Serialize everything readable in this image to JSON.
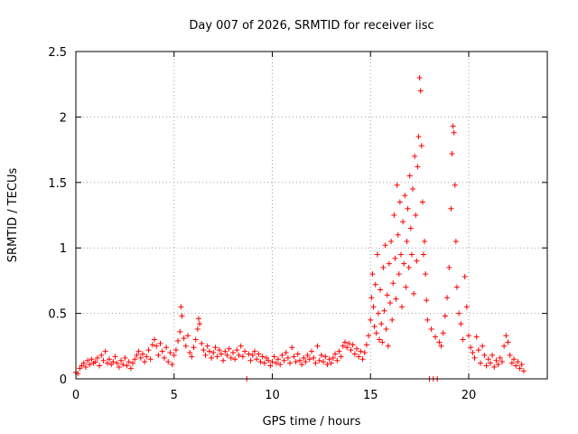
{
  "chart_data": {
    "type": "scatter",
    "title": "Day 007 of 2026, SRMTID for receiver iisc",
    "xlabel": "GPS time / hours",
    "ylabel": "SRMTID / TECUs",
    "xlim": [
      0,
      24
    ],
    "ylim": [
      0,
      2.5
    ],
    "xticks": [
      0,
      5,
      10,
      15,
      20
    ],
    "yticks": [
      0,
      0.5,
      1,
      1.5,
      2,
      2.5
    ],
    "xtick_labels": [
      "0",
      "5",
      "10",
      "15",
      "20"
    ],
    "ytick_labels": [
      "0",
      "0.5",
      "1",
      "1.5",
      "2",
      "2.5"
    ],
    "grid": true,
    "marker": "+",
    "series": [
      {
        "name": "SRMTID",
        "color": "#ff0000",
        "points": [
          [
            0.0,
            0.05
          ],
          [
            0.1,
            0.04
          ],
          [
            0.2,
            0.08
          ],
          [
            0.3,
            0.1
          ],
          [
            0.4,
            0.12
          ],
          [
            0.5,
            0.09
          ],
          [
            0.6,
            0.14
          ],
          [
            0.7,
            0.11
          ],
          [
            0.8,
            0.15
          ],
          [
            0.9,
            0.12
          ],
          [
            1.0,
            0.13
          ],
          [
            1.1,
            0.16
          ],
          [
            1.2,
            0.1
          ],
          [
            1.3,
            0.18
          ],
          [
            1.4,
            0.14
          ],
          [
            1.5,
            0.21
          ],
          [
            1.6,
            0.12
          ],
          [
            1.7,
            0.15
          ],
          [
            1.8,
            0.11
          ],
          [
            1.9,
            0.13
          ],
          [
            2.0,
            0.17
          ],
          [
            2.1,
            0.12
          ],
          [
            2.2,
            0.09
          ],
          [
            2.3,
            0.14
          ],
          [
            2.4,
            0.11
          ],
          [
            2.5,
            0.16
          ],
          [
            2.6,
            0.1
          ],
          [
            2.7,
            0.13
          ],
          [
            2.8,
            0.08
          ],
          [
            2.9,
            0.12
          ],
          [
            3.0,
            0.15
          ],
          [
            3.1,
            0.18
          ],
          [
            3.2,
            0.21
          ],
          [
            3.3,
            0.16
          ],
          [
            3.4,
            0.19
          ],
          [
            3.5,
            0.13
          ],
          [
            3.6,
            0.17
          ],
          [
            3.7,
            0.22
          ],
          [
            3.8,
            0.15
          ],
          [
            3.9,
            0.26
          ],
          [
            4.0,
            0.3
          ],
          [
            4.1,
            0.25
          ],
          [
            4.2,
            0.18
          ],
          [
            4.3,
            0.27
          ],
          [
            4.4,
            0.21
          ],
          [
            4.5,
            0.16
          ],
          [
            4.6,
            0.24
          ],
          [
            4.7,
            0.13
          ],
          [
            4.8,
            0.2
          ],
          [
            4.9,
            0.11
          ],
          [
            5.0,
            0.18
          ],
          [
            5.1,
            0.22
          ],
          [
            5.2,
            0.29
          ],
          [
            5.3,
            0.36
          ],
          [
            5.35,
            0.55
          ],
          [
            5.4,
            0.48
          ],
          [
            5.5,
            0.31
          ],
          [
            5.6,
            0.25
          ],
          [
            5.7,
            0.33
          ],
          [
            5.8,
            0.2
          ],
          [
            5.9,
            0.17
          ],
          [
            6.0,
            0.24
          ],
          [
            6.1,
            0.3
          ],
          [
            6.2,
            0.38
          ],
          [
            6.25,
            0.46
          ],
          [
            6.3,
            0.42
          ],
          [
            6.4,
            0.27
          ],
          [
            6.5,
            0.22
          ],
          [
            6.6,
            0.18
          ],
          [
            6.7,
            0.25
          ],
          [
            6.8,
            0.21
          ],
          [
            6.9,
            0.16
          ],
          [
            7.0,
            0.2
          ],
          [
            7.1,
            0.24
          ],
          [
            7.2,
            0.17
          ],
          [
            7.3,
            0.22
          ],
          [
            7.4,
            0.19
          ],
          [
            7.5,
            0.14
          ],
          [
            7.6,
            0.21
          ],
          [
            7.7,
            0.18
          ],
          [
            7.8,
            0.23
          ],
          [
            7.9,
            0.16
          ],
          [
            8.0,
            0.2
          ],
          [
            8.1,
            0.15
          ],
          [
            8.2,
            0.22
          ],
          [
            8.3,
            0.18
          ],
          [
            8.4,
            0.25
          ],
          [
            8.5,
            0.17
          ],
          [
            8.6,
            0.21
          ],
          [
            8.7,
            0.0
          ],
          [
            8.8,
            0.19
          ],
          [
            8.9,
            0.14
          ],
          [
            9.0,
            0.18
          ],
          [
            9.1,
            0.21
          ],
          [
            9.2,
            0.15
          ],
          [
            9.3,
            0.19
          ],
          [
            9.4,
            0.13
          ],
          [
            9.5,
            0.17
          ],
          [
            9.6,
            0.12
          ],
          [
            9.7,
            0.16
          ],
          [
            9.8,
            0.14
          ],
          [
            9.9,
            0.1
          ],
          [
            10.0,
            0.13
          ],
          [
            10.1,
            0.17
          ],
          [
            10.2,
            0.12
          ],
          [
            10.3,
            0.15
          ],
          [
            10.4,
            0.11
          ],
          [
            10.5,
            0.18
          ],
          [
            10.6,
            0.14
          ],
          [
            10.7,
            0.2
          ],
          [
            10.8,
            0.16
          ],
          [
            10.9,
            0.12
          ],
          [
            11.0,
            0.24
          ],
          [
            11.1,
            0.17
          ],
          [
            11.2,
            0.13
          ],
          [
            11.3,
            0.19
          ],
          [
            11.4,
            0.14
          ],
          [
            11.5,
            0.11
          ],
          [
            11.6,
            0.16
          ],
          [
            11.7,
            0.13
          ],
          [
            11.8,
            0.18
          ],
          [
            11.9,
            0.15
          ],
          [
            12.0,
            0.21
          ],
          [
            12.1,
            0.16
          ],
          [
            12.2,
            0.12
          ],
          [
            12.3,
            0.25
          ],
          [
            12.4,
            0.14
          ],
          [
            12.5,
            0.18
          ],
          [
            12.6,
            0.13
          ],
          [
            12.7,
            0.17
          ],
          [
            12.8,
            0.11
          ],
          [
            12.9,
            0.15
          ],
          [
            13.0,
            0.12
          ],
          [
            13.1,
            0.16
          ],
          [
            13.2,
            0.19
          ],
          [
            13.3,
            0.14
          ],
          [
            13.4,
            0.21
          ],
          [
            13.5,
            0.17
          ],
          [
            13.6,
            0.25
          ],
          [
            13.7,
            0.28
          ],
          [
            13.8,
            0.24
          ],
          [
            13.9,
            0.27
          ],
          [
            14.0,
            0.22
          ],
          [
            14.1,
            0.26
          ],
          [
            14.2,
            0.19
          ],
          [
            14.3,
            0.23
          ],
          [
            14.4,
            0.17
          ],
          [
            14.5,
            0.21
          ],
          [
            14.6,
            0.15
          ],
          [
            14.7,
            0.2
          ],
          [
            14.8,
            0.26
          ],
          [
            14.9,
            0.33
          ],
          [
            15.0,
            0.45
          ],
          [
            15.05,
            0.62
          ],
          [
            15.1,
            0.8
          ],
          [
            15.15,
            0.55
          ],
          [
            15.2,
            0.4
          ],
          [
            15.25,
            0.72
          ],
          [
            15.3,
            0.35
          ],
          [
            15.35,
            0.95
          ],
          [
            15.4,
            0.5
          ],
          [
            15.45,
            0.3
          ],
          [
            15.5,
            0.68
          ],
          [
            15.55,
            0.42
          ],
          [
            15.6,
            0.28
          ],
          [
            15.65,
            0.85
          ],
          [
            15.7,
            0.52
          ],
          [
            15.75,
            1.02
          ],
          [
            15.8,
            0.38
          ],
          [
            15.85,
            0.64
          ],
          [
            15.9,
            0.25
          ],
          [
            15.95,
            0.88
          ],
          [
            16.0,
            0.58
          ],
          [
            16.05,
            1.05
          ],
          [
            16.1,
            0.45
          ],
          [
            16.15,
            0.73
          ],
          [
            16.2,
            1.25
          ],
          [
            16.25,
            0.92
          ],
          [
            16.3,
            0.61
          ],
          [
            16.35,
            1.48
          ],
          [
            16.4,
            1.1
          ],
          [
            16.45,
            0.8
          ],
          [
            16.5,
            1.35
          ],
          [
            16.55,
            0.95
          ],
          [
            16.6,
            0.55
          ],
          [
            16.65,
            1.2
          ],
          [
            16.7,
            0.88
          ],
          [
            16.75,
            1.4
          ],
          [
            16.8,
            0.7
          ],
          [
            16.85,
            1.05
          ],
          [
            16.9,
            1.3
          ],
          [
            16.95,
            0.85
          ],
          [
            17.0,
            1.55
          ],
          [
            17.05,
            1.15
          ],
          [
            17.1,
            0.95
          ],
          [
            17.15,
            1.45
          ],
          [
            17.2,
            0.65
          ],
          [
            17.25,
            1.7
          ],
          [
            17.3,
            1.25
          ],
          [
            17.35,
            0.9
          ],
          [
            17.4,
            1.62
          ],
          [
            17.45,
            1.85
          ],
          [
            17.5,
            2.3
          ],
          [
            17.55,
            2.2
          ],
          [
            17.6,
            1.78
          ],
          [
            17.65,
            1.35
          ],
          [
            17.7,
            0.95
          ],
          [
            17.75,
            1.05
          ],
          [
            17.8,
            0.8
          ],
          [
            17.85,
            0.6
          ],
          [
            17.9,
            0.45
          ],
          [
            18.0,
            0.0
          ],
          [
            18.1,
            0.38
          ],
          [
            18.2,
            0.0
          ],
          [
            18.3,
            0.32
          ],
          [
            18.4,
            0.0
          ],
          [
            18.5,
            0.28
          ],
          [
            18.6,
            0.25
          ],
          [
            18.7,
            0.35
          ],
          [
            18.8,
            0.48
          ],
          [
            18.9,
            0.62
          ],
          [
            19.0,
            0.85
          ],
          [
            19.1,
            1.3
          ],
          [
            19.15,
            1.72
          ],
          [
            19.2,
            1.93
          ],
          [
            19.25,
            1.88
          ],
          [
            19.3,
            1.48
          ],
          [
            19.35,
            1.05
          ],
          [
            19.4,
            0.7
          ],
          [
            19.5,
            0.5
          ],
          [
            19.6,
            0.42
          ],
          [
            19.7,
            0.3
          ],
          [
            19.8,
            0.78
          ],
          [
            19.9,
            0.55
          ],
          [
            20.0,
            0.33
          ],
          [
            20.1,
            0.24
          ],
          [
            20.2,
            0.2
          ],
          [
            20.3,
            0.16
          ],
          [
            20.4,
            0.32
          ],
          [
            20.5,
            0.22
          ],
          [
            20.6,
            0.12
          ],
          [
            20.7,
            0.25
          ],
          [
            20.8,
            0.18
          ],
          [
            20.9,
            0.1
          ],
          [
            21.0,
            0.15
          ],
          [
            21.1,
            0.12
          ],
          [
            21.2,
            0.18
          ],
          [
            21.3,
            0.09
          ],
          [
            21.4,
            0.14
          ],
          [
            21.5,
            0.11
          ],
          [
            21.6,
            0.16
          ],
          [
            21.7,
            0.13
          ],
          [
            21.8,
            0.25
          ],
          [
            21.9,
            0.33
          ],
          [
            22.0,
            0.28
          ],
          [
            22.1,
            0.18
          ],
          [
            22.2,
            0.12
          ],
          [
            22.3,
            0.15
          ],
          [
            22.4,
            0.1
          ],
          [
            22.5,
            0.13
          ],
          [
            22.6,
            0.08
          ],
          [
            22.7,
            0.11
          ],
          [
            22.8,
            0.06
          ]
        ]
      }
    ]
  }
}
